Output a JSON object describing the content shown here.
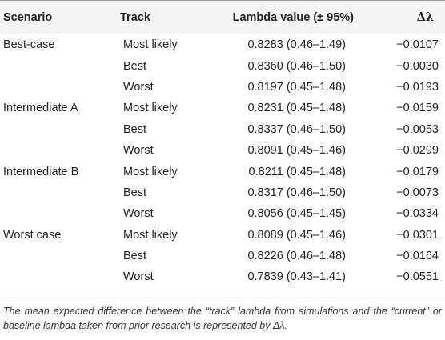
{
  "table": {
    "headers": {
      "scenario": "Scenario",
      "track": "Track",
      "lambda": "Lambda value (± 95%)",
      "delta": "Δλ"
    },
    "rows": [
      {
        "scenario": "Best-case",
        "track": "Most likely",
        "lambda": "0.8283 (0.46–1.49)",
        "delta": "−0.0107"
      },
      {
        "scenario": "",
        "track": "Best",
        "lambda": "0.8360 (0.46–1.50)",
        "delta": "−0.0030"
      },
      {
        "scenario": "",
        "track": "Worst",
        "lambda": "0.8197 (0.45–1.48)",
        "delta": "−0.0193"
      },
      {
        "scenario": "Intermediate A",
        "track": "Most likely",
        "lambda": "0.8231 (0.45–1.48)",
        "delta": "−0.0159"
      },
      {
        "scenario": "",
        "track": "Best",
        "lambda": "0.8337 (0.46–1.50)",
        "delta": "−0.0053"
      },
      {
        "scenario": "",
        "track": "Worst",
        "lambda": "0.8091 (0.45–1.46)",
        "delta": "−0.0299"
      },
      {
        "scenario": "Intermediate B",
        "track": "Most likely",
        "lambda": "0.8211 (0.45–1.48)",
        "delta": "−0.0179"
      },
      {
        "scenario": "",
        "track": "Best",
        "lambda": "0.8317 (0.46–1.50)",
        "delta": "−0.0073"
      },
      {
        "scenario": "",
        "track": "Worst",
        "lambda": "0.8056 (0.45–1.45)",
        "delta": "−0.0334"
      },
      {
        "scenario": "Worst case",
        "track": "Most likely",
        "lambda": "0.8089 (0.45–1.46)",
        "delta": "−0.0301"
      },
      {
        "scenario": "",
        "track": "Best",
        "lambda": "0.8226 (0.46–1.48)",
        "delta": "−0.0164"
      },
      {
        "scenario": "",
        "track": "Worst",
        "lambda": "0.7839 (0.43–1.41)",
        "delta": "−0.0551"
      }
    ]
  },
  "footnote": "The mean expected difference between the “track” lambda from simulations and the “current” or baseline lambda taken from prior research is represented by Δλ."
}
